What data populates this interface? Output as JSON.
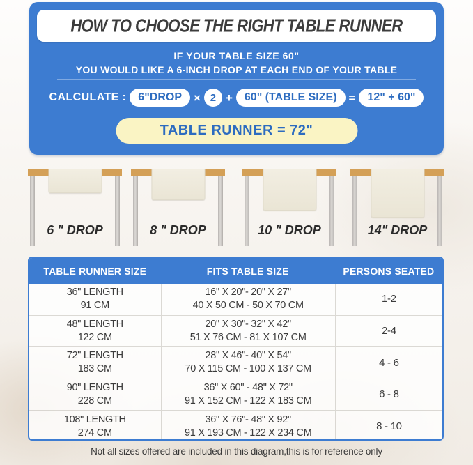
{
  "colors": {
    "accent_blue": "#3d7cd1",
    "pill_text_blue": "#2d6cc0",
    "highlight_yellow": "#faf4c4",
    "wood_tan": "#d4a057",
    "runner_cream": "#efebdd"
  },
  "header": {
    "title": "HOW TO CHOOSE THE RIGHT TABLE RUNNER",
    "intro_line1": "IF YOUR TABLE SIZE 60\"",
    "intro_line2": "YOU WOULD LIKE A 6-INCH DROP AT EACH END OF YOUR TABLE"
  },
  "formula": {
    "label": "CALCULATE :",
    "drop": "6\"DROP",
    "times": "×",
    "multiplier": "2",
    "plus": "+",
    "table_size": "60\" (TABLE SIZE)",
    "equals": "=",
    "result": "12\" + 60\"",
    "final": "TABLE RUNNER = 72\""
  },
  "drops": [
    {
      "inches": 6,
      "label": "6 \" DROP"
    },
    {
      "inches": 8,
      "label": "8 \" DROP"
    },
    {
      "inches": 10,
      "label": "10 \" DROP"
    },
    {
      "inches": 14,
      "label": "14\" DROP"
    }
  ],
  "size_table": {
    "columns": [
      "TABLE RUNNER SIZE",
      "FITS TABLE SIZE",
      "PERSONS SEATED"
    ],
    "rows": [
      {
        "runner_in": "36\" LENGTH",
        "runner_cm": "91 CM",
        "fits_in": "16\" X 20\"- 20\" X 27\"",
        "fits_cm": "40 X 50 CM - 50 X 70 CM",
        "persons": "1-2"
      },
      {
        "runner_in": "48\" LENGTH",
        "runner_cm": "122 CM",
        "fits_in": "20\" X 30\"- 32\" X 42\"",
        "fits_cm": "51 X 76 CM - 81 X 107 CM",
        "persons": "2-4"
      },
      {
        "runner_in": "72\" LENGTH",
        "runner_cm": "183 CM",
        "fits_in": "28\" X 46\"- 40\" X 54\"",
        "fits_cm": "70 X 115 CM - 100 X 137 CM",
        "persons": "4 - 6"
      },
      {
        "runner_in": "90\" LENGTH",
        "runner_cm": "228 CM",
        "fits_in": "36\" X 60\" - 48\" X 72\"",
        "fits_cm": "91 X 152 CM - 122 X 183 CM",
        "persons": "6 - 8"
      },
      {
        "runner_in": "108\" LENGTH",
        "runner_cm": "274 CM",
        "fits_in": "36\" X 76\"- 48\" X 92\"",
        "fits_cm": "91 X 193 CM - 122 X 234 CM",
        "persons": "8 - 10"
      }
    ]
  },
  "footer_note": "Not all sizes offered are included in this diagram,this is for reference only"
}
